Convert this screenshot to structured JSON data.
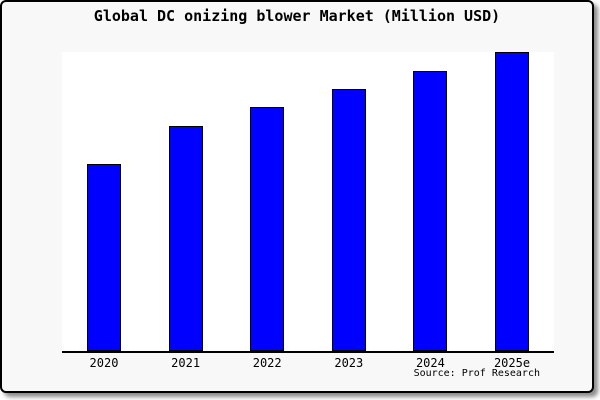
{
  "title": "Global DC onizing blower Market (Million USD)",
  "source_text": "Source: Prof Research",
  "colors": {
    "bar_fill": "#0000ff",
    "bar_border": "#000000",
    "frame_border": "#000000",
    "frame_background": "#f8f8f8",
    "plot_background": "#ffffff",
    "axis_line": "#000000",
    "text": "#000000"
  },
  "chart_data": {
    "type": "bar",
    "title": "Global DC onizing blower Market (Million USD)",
    "categories": [
      "2020",
      "2021",
      "2022",
      "2023",
      "2024",
      "2025e"
    ],
    "values": [
      62.6,
      75.2,
      81.6,
      87.7,
      93.6,
      100
    ],
    "xlabel": "",
    "ylabel": "",
    "ylim": [
      0,
      100
    ],
    "grid": false,
    "legend_position": "none",
    "y_axis_visible": false,
    "value_scale_note": "No y-axis ticks or data labels are shown in the figure; values are relative bar heights as a percent of the tallest bar (2025e = 100)"
  }
}
